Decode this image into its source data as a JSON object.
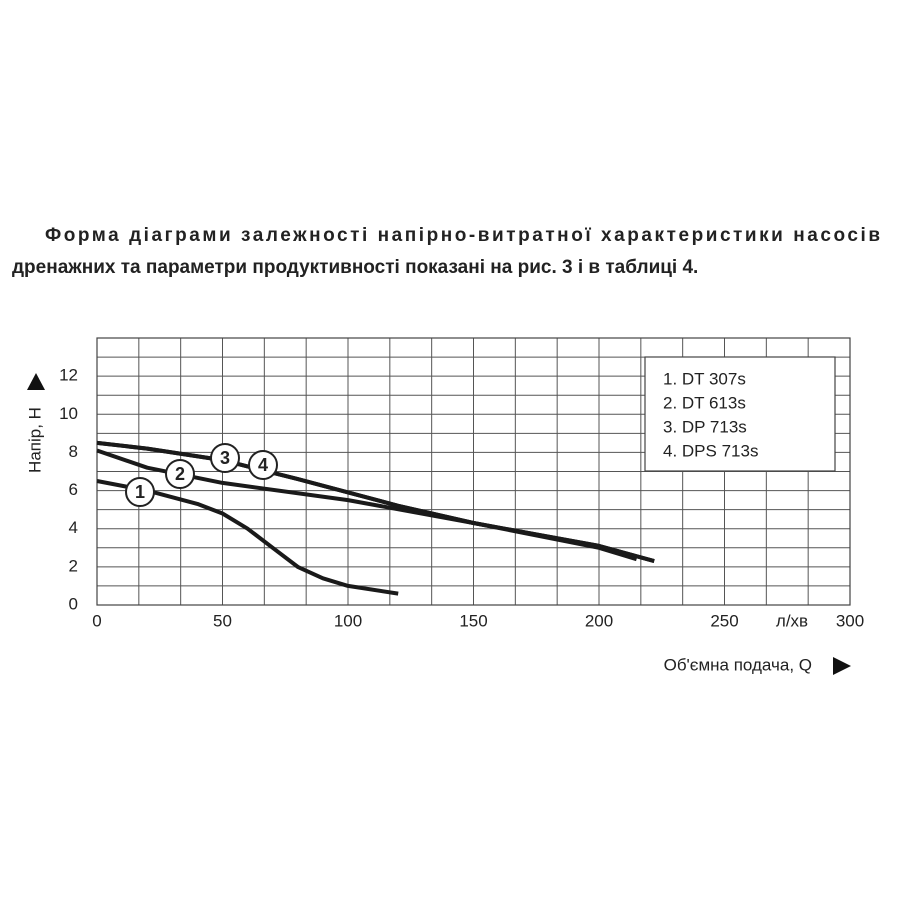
{
  "caption": [
    "Форма діаграми залежності напірно-витратної характеристики насосів",
    "дренажних та параметри продуктивності показані на рис. 3 і в таблиці 4."
  ],
  "chart_data": {
    "type": "line",
    "y_label": "Напір, Н",
    "x_label": "Об'ємна подача, Q",
    "x_unit": "л/хв",
    "xlim": [
      0,
      300
    ],
    "xticks": [
      0,
      50,
      100,
      150,
      200,
      250,
      300
    ],
    "ylim": [
      0,
      14
    ],
    "yticks": [
      0,
      2,
      4,
      6,
      8,
      10,
      12
    ],
    "grid": true,
    "series": [
      {
        "name": "1. DT 307s",
        "marker": "1",
        "color": "#1a1a1a",
        "x": [
          0,
          20,
          40,
          50,
          60,
          70,
          80,
          90,
          100,
          120
        ],
        "values": [
          6.5,
          6.0,
          5.3,
          4.8,
          4.0,
          3.0,
          2.0,
          1.4,
          1.0,
          0.6
        ]
      },
      {
        "name": "2. DT 613s",
        "marker": "2",
        "color": "#1a1a1a",
        "x": [
          0,
          20,
          50,
          100,
          150,
          200,
          215
        ],
        "values": [
          8.1,
          7.2,
          6.4,
          5.5,
          4.3,
          3.0,
          2.4
        ]
      },
      {
        "name": "3. DP 713s",
        "marker": "3",
        "color": "#1a1a1a",
        "x": [
          0,
          20,
          50,
          80,
          120,
          150,
          200,
          222
        ],
        "values": [
          8.5,
          8.2,
          7.6,
          6.6,
          5.2,
          4.3,
          3.1,
          2.3
        ]
      },
      {
        "name": "4. DPS 713s",
        "marker": "4",
        "color": "#1a1a1a",
        "x": [
          0,
          20,
          50,
          80,
          120,
          150,
          200,
          222
        ],
        "values": [
          8.5,
          8.2,
          7.6,
          6.6,
          5.2,
          4.3,
          3.1,
          2.3
        ]
      }
    ]
  }
}
